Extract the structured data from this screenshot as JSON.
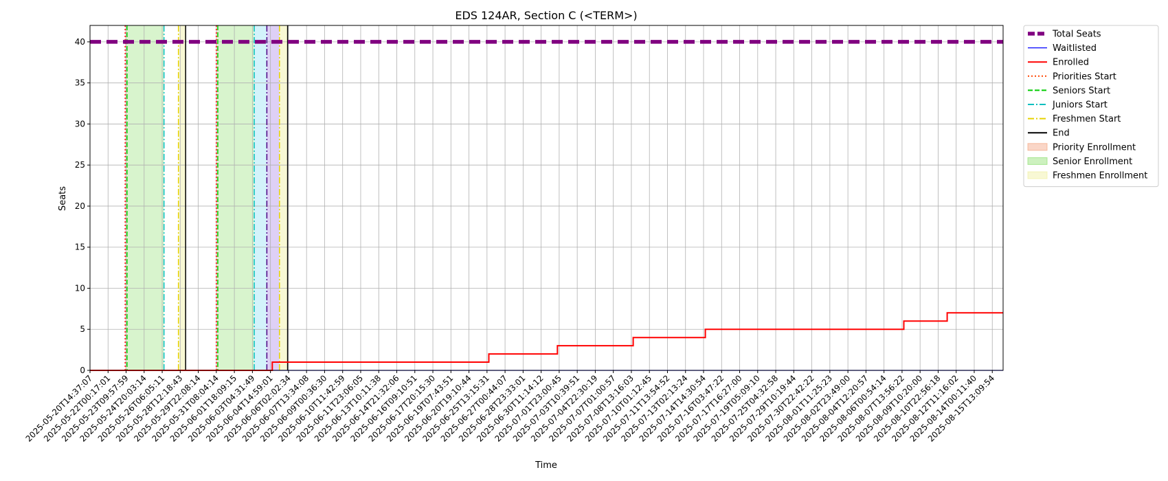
{
  "chart_data": {
    "type": "line",
    "title": "EDS 124AR, Section C (<TERM>)",
    "xlabel": "Time",
    "ylabel": "Seats",
    "ylim": [
      0,
      42
    ],
    "yticks": [
      0,
      5,
      10,
      15,
      20,
      25,
      30,
      35,
      40
    ],
    "grid": true,
    "legend_position": "outside-top-right",
    "x_ticks": [
      "2025-05-20T14:37:07",
      "2025-05-22T00:17:01",
      "2025-05-23T09:57:59",
      "2025-05-24T20:03:14",
      "2025-05-26T06:05:11",
      "2025-05-28T12:18:43",
      "2025-05-29T22:08:14",
      "2025-05-31T08:04:14",
      "2025-06-01T18:09:15",
      "2025-06-03T04:31:49",
      "2025-06-04T14:59:01",
      "2025-06-06T02:02:34",
      "2025-06-07T13:34:08",
      "2025-06-09T00:36:30",
      "2025-06-10T11:42:59",
      "2025-06-11T23:06:05",
      "2025-06-13T10:11:38",
      "2025-06-14T21:32:06",
      "2025-06-16T09:10:51",
      "2025-06-17T20:15:30",
      "2025-06-19T07:43:51",
      "2025-06-20T19:10:44",
      "2025-06-25T13:15:31",
      "2025-06-27T00:44:07",
      "2025-06-28T23:33:01",
      "2025-06-30T11:14:12",
      "2025-07-01T23:00:45",
      "2025-07-03T10:39:51",
      "2025-07-04T22:30:19",
      "2025-07-07T01:00:57",
      "2025-07-08T13:16:03",
      "2025-07-10T01:12:45",
      "2025-07-11T13:54:52",
      "2025-07-13T02:13:24",
      "2025-07-14T14:30:54",
      "2025-07-16T03:47:22",
      "2025-07-17T16:27:00",
      "2025-07-19T05:09:10",
      "2025-07-25T04:32:58",
      "2025-07-29T10:19:44",
      "2025-07-30T22:42:22",
      "2025-08-01T11:25:23",
      "2025-08-02T23:49:00",
      "2025-08-04T12:20:57",
      "2025-08-06T00:54:14",
      "2025-08-07T13:56:22",
      "2025-08-09T10:20:00",
      "2025-08-10T22:56:18",
      "2025-08-12T11:16:02",
      "2025-08-14T00:11:40",
      "2025-08-15T13:09:54"
    ],
    "x_range_index": [
      0,
      50.6
    ],
    "series": [
      {
        "name": "Total Seats",
        "style": "dashed-thick",
        "color": "#800080",
        "points": [
          [
            0,
            40
          ],
          [
            50.6,
            40
          ]
        ]
      },
      {
        "name": "Waitlisted",
        "style": "solid-thin",
        "color": "#0000ff",
        "points": [
          [
            0,
            0
          ],
          [
            50.6,
            0
          ]
        ]
      },
      {
        "name": "Enrolled",
        "style": "step",
        "color": "#ff0000",
        "points": [
          [
            0,
            0
          ],
          [
            10.1,
            0
          ],
          [
            10.1,
            1
          ],
          [
            22.1,
            1
          ],
          [
            22.1,
            2
          ],
          [
            25.9,
            2
          ],
          [
            25.9,
            3
          ],
          [
            30.1,
            3
          ],
          [
            30.1,
            4
          ],
          [
            34.1,
            4
          ],
          [
            34.1,
            5
          ],
          [
            45.1,
            5
          ],
          [
            45.1,
            6
          ],
          [
            47.5,
            6
          ],
          [
            47.5,
            7
          ],
          [
            50.6,
            7
          ]
        ]
      }
    ],
    "vertical_markers": [
      {
        "name": "Priorities Start",
        "color": "#ff0000",
        "style": "dotted",
        "x": [
          1.95,
          7.0
        ]
      },
      {
        "name": "Seniors Start",
        "color": "#00cc00",
        "style": "dashed",
        "x": [
          2.05,
          7.08
        ]
      },
      {
        "name": "Juniors Start",
        "color": "#00bfbf",
        "style": "dashdot",
        "x": [
          4.1,
          9.1
        ]
      },
      {
        "name": "Freshmen Start",
        "color": "#e6d200",
        "style": "dashdot",
        "x": [
          4.9,
          10.5
        ]
      },
      {
        "name": "End",
        "color": "#000000",
        "style": "solid",
        "x": [
          5.3,
          10.95
        ]
      },
      {
        "name": "",
        "color": "#4b0082",
        "style": "dashdot",
        "x": [
          9.8
        ]
      }
    ],
    "shaded_regions": [
      {
        "name": "Priority Enrollment",
        "color": "#f4a582",
        "opacity": 0.35,
        "ranges": [
          [
            1.95,
            2.05
          ],
          [
            7.0,
            7.08
          ]
        ]
      },
      {
        "name": "Senior Enrollment",
        "color": "#90e070",
        "opacity": 0.35,
        "ranges": [
          [
            2.05,
            4.1
          ],
          [
            7.08,
            9.1
          ]
        ]
      },
      {
        "name": "",
        "color": "#a8e8f8",
        "opacity": 0.5,
        "ranges": [
          [
            9.1,
            9.8
          ]
        ]
      },
      {
        "name": "",
        "color": "#c8b0f0",
        "opacity": 0.6,
        "ranges": [
          [
            9.8,
            10.5
          ]
        ]
      },
      {
        "name": "Freshmen Enrollment",
        "color": "#f0f0a0",
        "opacity": 0.45,
        "ranges": [
          [
            4.9,
            5.3
          ],
          [
            10.5,
            10.95
          ]
        ]
      }
    ],
    "legend": [
      {
        "label": "Total Seats",
        "kind": "line",
        "color": "#800080",
        "style": "dashed-thick"
      },
      {
        "label": "Waitlisted",
        "kind": "line",
        "color": "#0000ff",
        "style": "solid-thin"
      },
      {
        "label": "Enrolled",
        "kind": "line",
        "color": "#ff0000",
        "style": "solid"
      },
      {
        "label": "Priorities Start",
        "kind": "line",
        "color": "#ff4500",
        "style": "dotted"
      },
      {
        "label": "Seniors Start",
        "kind": "line",
        "color": "#00cc00",
        "style": "dashed"
      },
      {
        "label": "Juniors Start",
        "kind": "line",
        "color": "#00bfbf",
        "style": "dashdot"
      },
      {
        "label": "Freshmen Start",
        "kind": "line",
        "color": "#e6d200",
        "style": "dashdot"
      },
      {
        "label": "End",
        "kind": "line",
        "color": "#000000",
        "style": "solid"
      },
      {
        "label": "Priority Enrollment",
        "kind": "patch",
        "color": "#f4a582"
      },
      {
        "label": "Senior Enrollment",
        "kind": "patch",
        "color": "#90e070"
      },
      {
        "label": "Freshmen Enrollment",
        "kind": "patch",
        "color": "#f0f0a0"
      }
    ]
  }
}
